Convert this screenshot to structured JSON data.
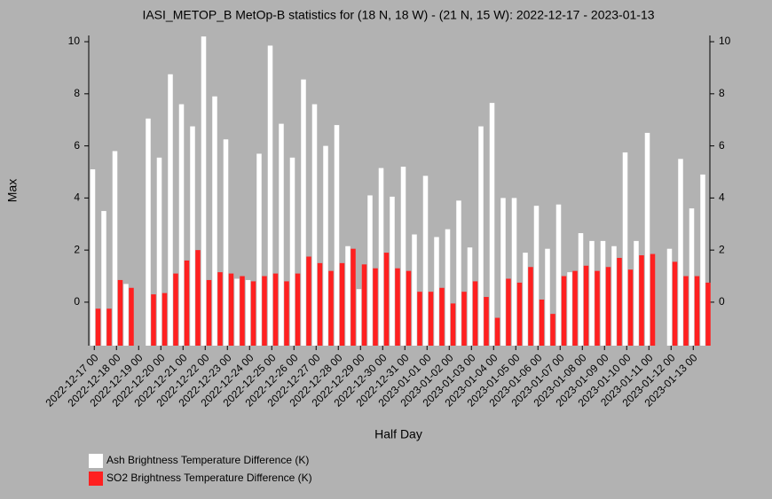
{
  "chart_data": {
    "type": "bar",
    "title": "IASI_METOP_B MetOp-B statistics for (18 N, 18 W) - (21 N, 15 W): 2022-12-17 - 2023-01-13",
    "x_label": "Half Day",
    "y_label": "Max",
    "categories": [
      "2022-12-17 00",
      null,
      "2022-12-18 00",
      null,
      "2022-12-19 00",
      null,
      "2022-12-20 00",
      null,
      "2022-12-21 00",
      null,
      "2022-12-22 00",
      null,
      "2022-12-23 00",
      null,
      "2022-12-24 00",
      null,
      "2022-12-25 00",
      null,
      "2022-12-26 00",
      null,
      "2022-12-27 00",
      null,
      "2022-12-28 00",
      null,
      "2022-12-29 00",
      null,
      "2022-12-30 00",
      null,
      "2022-12-31 00",
      null,
      "2023-01-01 00",
      null,
      "2023-01-02 00",
      null,
      "2023-01-03 00",
      null,
      "2023-01-04 00",
      null,
      "2023-01-05 00",
      null,
      "2023-01-06 00",
      null,
      "2023-01-07 00",
      null,
      "2023-01-08 00",
      null,
      "2023-01-09 00",
      null,
      "2023-01-10 00",
      null,
      "2023-01-11 00",
      null,
      "2023-01-12 00",
      null,
      "2023-01-13 00",
      null
    ],
    "series": [
      {
        "name": "Ash Brightness Temperature Difference (K)",
        "color": "#ffffff",
        "values": [
          5.1,
          3.5,
          5.8,
          0.7,
          null,
          7.05,
          5.55,
          8.75,
          7.6,
          6.75,
          10.2,
          7.9,
          6.25,
          0.9,
          0.85,
          5.7,
          9.85,
          6.85,
          5.55,
          8.55,
          7.6,
          6.0,
          6.8,
          2.15,
          0.5,
          4.1,
          5.15,
          4.05,
          5.2,
          2.6,
          4.85,
          2.5,
          2.8,
          3.9,
          2.1,
          6.75,
          7.65,
          4.0,
          4.0,
          1.9,
          3.7,
          2.05,
          3.75,
          1.15,
          2.65,
          2.35,
          2.35,
          2.15,
          5.75,
          2.35,
          6.5,
          null,
          2.05,
          5.5,
          3.6,
          4.9
        ]
      },
      {
        "name": "SO2 Brightness Temperature Difference (K)",
        "color": "#ff2020",
        "values": [
          -0.25,
          -0.25,
          0.85,
          0.55,
          null,
          0.3,
          0.35,
          1.1,
          1.6,
          2.0,
          0.85,
          1.15,
          1.1,
          1.0,
          0.8,
          1.0,
          1.1,
          0.8,
          1.1,
          1.75,
          1.5,
          1.2,
          1.5,
          2.05,
          1.45,
          1.3,
          1.9,
          1.3,
          1.2,
          0.4,
          0.4,
          0.55,
          -0.05,
          0.4,
          0.8,
          0.2,
          -0.6,
          0.9,
          0.75,
          1.35,
          0.1,
          -0.45,
          1.0,
          1.2,
          1.4,
          1.2,
          1.35,
          1.7,
          1.25,
          1.8,
          1.85,
          null,
          1.55,
          1.0,
          1.0,
          0.75
        ]
      }
    ],
    "ylim": [
      -1.67,
      10.24
    ],
    "yticks": [
      0,
      2,
      4,
      6,
      8,
      10
    ]
  }
}
